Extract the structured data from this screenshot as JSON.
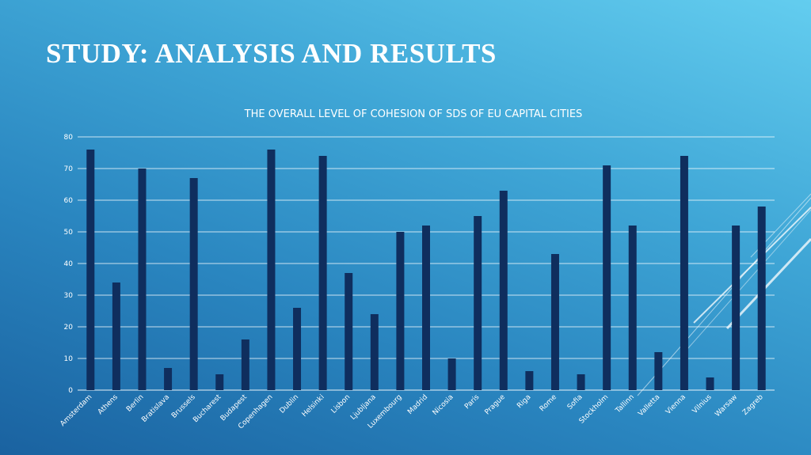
{
  "slide": {
    "title": "STUDY: ANALYSIS AND RESULTS"
  },
  "colors": {
    "bar": "#0f2e5e",
    "grid": "#ffffff",
    "text": "#ffffff"
  },
  "chart_data": {
    "type": "bar",
    "title": "THE OVERALL LEVEL OF COHESION OF SDS OF EU CAPITAL CITIES",
    "xlabel": "",
    "ylabel": "",
    "ylim": [
      0,
      80
    ],
    "yticks": [
      0,
      10,
      20,
      30,
      40,
      50,
      60,
      70,
      80
    ],
    "grid": true,
    "legend": "none",
    "categories": [
      "Amsterdam",
      "Athens",
      "Berlin",
      "Bratislava",
      "Brussels",
      "Bucharest",
      "Budapest",
      "Copenhagen",
      "Dublin",
      "Helsinki",
      "Lisbon",
      "Ljubljana",
      "Luxembourg",
      "Madrid",
      "Nicosia",
      "Paris",
      "Prague",
      "Riga",
      "Rome",
      "Sofia",
      "Stockholm",
      "Tallinn",
      "Valletta",
      "Vienna",
      "Vilnius",
      "Warsaw",
      "Zagreb"
    ],
    "values": [
      76,
      34,
      70,
      7,
      67,
      5,
      16,
      76,
      26,
      74,
      37,
      24,
      50,
      52,
      10,
      55,
      63,
      6,
      43,
      5,
      71,
      52,
      12,
      74,
      4,
      52,
      58
    ]
  }
}
